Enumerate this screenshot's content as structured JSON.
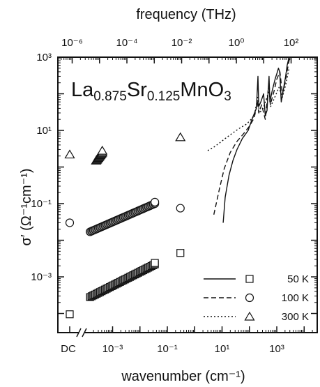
{
  "chart_data": {
    "type": "scatter",
    "title": "",
    "formula": {
      "parts": [
        {
          "text": "La",
          "sub": false
        },
        {
          "text": "0.875",
          "sub": true
        },
        {
          "text": "Sr",
          "sub": false
        },
        {
          "text": "0.125",
          "sub": true
        },
        {
          "text": "MnO",
          "sub": false
        },
        {
          "text": "3",
          "sub": true
        }
      ]
    },
    "xlabel": "wavenumber (cm⁻¹)",
    "x2label": "frequency (THz)",
    "ylabel": "σ′ (Ω⁻¹cm⁻¹)",
    "x_scale": "log",
    "y_scale": "log",
    "xlim": [
      1e-05,
      30000
    ],
    "ylim": [
      3e-05,
      1000
    ],
    "x_tick_labels": [
      {
        "value": 0.001,
        "text": "10⁻³"
      },
      {
        "value": 0.1,
        "text": "10⁻¹"
      },
      {
        "value": 10,
        "text": "10¹"
      },
      {
        "value": 1000,
        "text": "10³"
      }
    ],
    "x_break_label": "DC",
    "x2_tick_labels": [
      {
        "value": 1e-06,
        "text": "10⁻⁶"
      },
      {
        "value": 0.0001,
        "text": "10⁻⁴"
      },
      {
        "value": 0.01,
        "text": "10⁻²"
      },
      {
        "value": 1,
        "text": "10⁰"
      },
      {
        "value": 100,
        "text": "10²"
      }
    ],
    "y_tick_labels": [
      {
        "value": 0.001,
        "text": "10⁻³"
      },
      {
        "value": 0.1,
        "text": "10⁻¹"
      },
      {
        "value": 10,
        "text": "10¹"
      },
      {
        "value": 1000,
        "text": "10³"
      }
    ],
    "grid": false,
    "legend_position": "bottom-right",
    "series": [
      {
        "name": "50 K",
        "line": "solid",
        "marker": "square",
        "color": "#111111",
        "dc": {
          "y": 9.5e-05
        },
        "dense_marker_points": {
          "x_from": 0.00015,
          "x_to": 0.035,
          "y_from": 0.00028,
          "y_to": 0.0022
        },
        "open_points": [
          {
            "x": 0.035,
            "y": 0.0024
          },
          {
            "x": 0.3,
            "y": 0.0045
          }
        ],
        "curve": [
          [
            11,
            0.03
          ],
          [
            13,
            0.15
          ],
          [
            18,
            0.6
          ],
          [
            25,
            1.5
          ],
          [
            35,
            3
          ],
          [
            55,
            6
          ],
          [
            90,
            10
          ],
          [
            130,
            22
          ],
          [
            180,
            40
          ],
          [
            205,
            300
          ],
          [
            220,
            45
          ],
          [
            260,
            60
          ],
          [
            330,
            100
          ],
          [
            380,
            25
          ],
          [
            440,
            35
          ],
          [
            520,
            300
          ],
          [
            560,
            60
          ],
          [
            680,
            120
          ],
          [
            880,
            260
          ],
          [
            1000,
            350
          ],
          [
            1150,
            500
          ],
          [
            1280,
            400
          ],
          [
            1450,
            60
          ],
          [
            1800,
            150
          ],
          [
            2100,
            300
          ],
          [
            2400,
            600
          ],
          [
            2800,
            1000
          ]
        ]
      },
      {
        "name": "100 K",
        "line": "dashed",
        "marker": "circle",
        "color": "#111111",
        "dc": {
          "y": 0.03
        },
        "dense_marker_points": {
          "x_from": 0.00015,
          "x_to": 0.035,
          "y_from": 0.017,
          "y_to": 0.1
        },
        "open_points": [
          {
            "x": 0.035,
            "y": 0.11
          },
          {
            "x": 0.3,
            "y": 0.075
          }
        ],
        "curve": [
          [
            5,
            0.05
          ],
          [
            8,
            0.25
          ],
          [
            12,
            0.9
          ],
          [
            20,
            2.5
          ],
          [
            35,
            5
          ],
          [
            60,
            8
          ],
          [
            100,
            13
          ],
          [
            150,
            22
          ],
          [
            195,
            60
          ],
          [
            220,
            30
          ],
          [
            280,
            50
          ],
          [
            380,
            20
          ],
          [
            520,
            220
          ],
          [
            580,
            50
          ],
          [
            800,
            120
          ],
          [
            1000,
            250
          ],
          [
            1300,
            400
          ],
          [
            1600,
            100
          ],
          [
            2000,
            200
          ],
          [
            2500,
            500
          ],
          [
            2900,
            900
          ]
        ]
      },
      {
        "name": "300 K",
        "line": "dotted",
        "marker": "triangle",
        "color": "#111111",
        "dc": {
          "y": 2.2
        },
        "dense_marker_points": {
          "x_from": 0.00025,
          "x_to": 0.00042,
          "y_from": 1.5,
          "y_to": 2.5
        },
        "open_points": [
          {
            "x": 0.00042,
            "y": 2.8
          },
          {
            "x": 0.3,
            "y": 6.5
          }
        ],
        "curve": [
          [
            3,
            2.8
          ],
          [
            5,
            3.5
          ],
          [
            8,
            4.5
          ],
          [
            13,
            6
          ],
          [
            22,
            8
          ],
          [
            40,
            11
          ],
          [
            80,
            15
          ],
          [
            150,
            25
          ],
          [
            200,
            80
          ],
          [
            230,
            30
          ],
          [
            320,
            40
          ],
          [
            520,
            120
          ],
          [
            600,
            45
          ],
          [
            900,
            90
          ],
          [
            1200,
            150
          ],
          [
            1600,
            80
          ],
          [
            2200,
            200
          ],
          [
            2800,
            500
          ]
        ]
      }
    ]
  }
}
